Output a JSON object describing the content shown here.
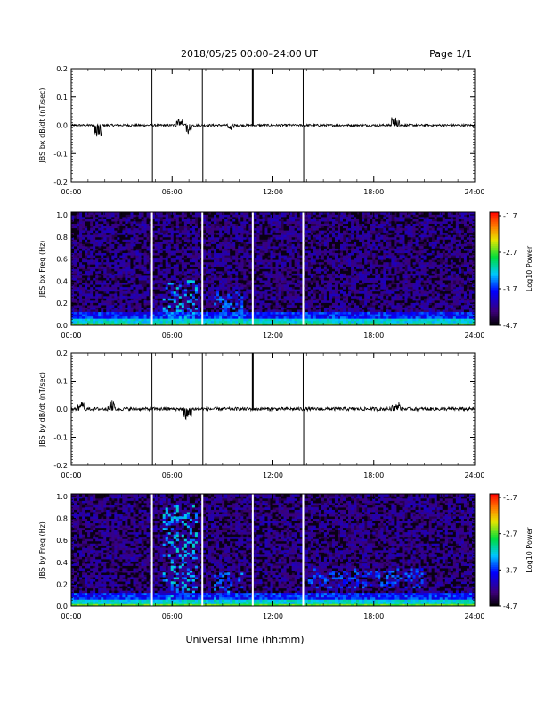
{
  "header": {
    "title": "2018/05/25  00:00–24:00 UT",
    "page": "Page 1/1"
  },
  "xlabel": "Universal Time (hh:mm)",
  "chart_data": [
    {
      "type": "line",
      "ylabel": "JBS bx dB/dt (nT/sec)",
      "xlim": [
        0,
        24
      ],
      "ylim": [
        -0.2,
        0.2
      ],
      "xticks": [
        "00:00",
        "06:00",
        "12:00",
        "18:00",
        "24:00"
      ],
      "yticks": [
        "0.2",
        "0.1",
        "0.0",
        "-0.1",
        "-0.2"
      ],
      "spikes_hours": [
        4.8,
        7.8,
        10.8,
        13.8
      ],
      "bursts": [
        {
          "x": 1.6,
          "y": -0.04
        },
        {
          "x": 6.5,
          "y": 0.02
        },
        {
          "x": 6.9,
          "y": -0.025
        },
        {
          "x": 9.5,
          "y": -0.015
        },
        {
          "x": 19.3,
          "y": 0.03
        }
      ]
    },
    {
      "type": "heatmap",
      "ylabel": "JBS bx Freq (Hz)",
      "xlim": [
        0,
        24
      ],
      "ylim": [
        0.0,
        1.0
      ],
      "xticks": [
        "00:00",
        "06:00",
        "12:00",
        "18:00",
        "24:00"
      ],
      "yticks": [
        "1.0",
        "0.8",
        "0.6",
        "0.4",
        "0.2",
        "0.0"
      ],
      "colorbar": {
        "label": "Log10 Power",
        "ticks": [
          "-1.7",
          "-2.7",
          "-3.7",
          "-4.7"
        ],
        "range": [
          -4.7,
          -1.7
        ]
      },
      "gaps_hours": [
        4.8,
        7.8,
        10.8,
        13.8
      ]
    },
    {
      "type": "line",
      "ylabel": "JBS by dB/dt (nT/sec)",
      "xlim": [
        0,
        24
      ],
      "ylim": [
        -0.2,
        0.2
      ],
      "xticks": [
        "00:00",
        "06:00",
        "12:00",
        "18:00",
        "24:00"
      ],
      "yticks": [
        "0.2",
        "0.1",
        "0.0",
        "-0.1",
        "-0.2"
      ],
      "spikes_hours": [
        4.8,
        7.8,
        10.8,
        13.8
      ],
      "bursts": [
        {
          "x": 0.6,
          "y": 0.02
        },
        {
          "x": 2.4,
          "y": 0.03
        },
        {
          "x": 6.9,
          "y": -0.03
        },
        {
          "x": 19.3,
          "y": 0.02
        }
      ]
    },
    {
      "type": "heatmap",
      "ylabel": "JBS by Freq (Hz)",
      "xlim": [
        0,
        24
      ],
      "ylim": [
        0.0,
        1.0
      ],
      "xticks": [
        "00:00",
        "06:00",
        "12:00",
        "18:00",
        "24:00"
      ],
      "yticks": [
        "1.0",
        "0.8",
        "0.6",
        "0.4",
        "0.2",
        "0.0"
      ],
      "colorbar": {
        "label": "Log10 Power",
        "ticks": [
          "-1.7",
          "-2.7",
          "-3.7",
          "-4.7"
        ],
        "range": [
          -4.7,
          -1.7
        ]
      },
      "gaps_hours": [
        4.8,
        7.8,
        10.8,
        13.8
      ]
    }
  ]
}
